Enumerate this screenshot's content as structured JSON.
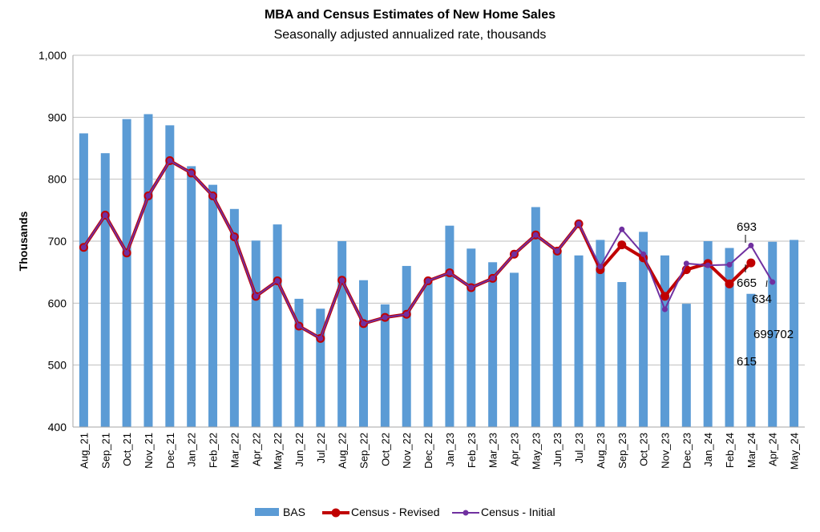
{
  "chart_data": {
    "type": "bar",
    "title": "MBA and Census Estimates of New Home Sales",
    "subtitle": "Seasonally adjusted annualized rate, thousands",
    "xlabel": "",
    "ylabel": "Thousands",
    "ylim": [
      400,
      1000
    ],
    "yticks": [
      400,
      500,
      600,
      700,
      800,
      900,
      1000
    ],
    "ytick_labels": [
      "400",
      "500",
      "600",
      "700",
      "800",
      "900",
      "1,000"
    ],
    "grid": true,
    "legend_position": "bottom",
    "categories": [
      "Aug_21",
      "Sep_21",
      "Oct_21",
      "Nov_21",
      "Dec_21",
      "Jan_22",
      "Feb_22",
      "Mar_22",
      "Apr_22",
      "May_22",
      "Jun_22",
      "Jul_22",
      "Aug_22",
      "Sep_22",
      "Oct_22",
      "Nov_22",
      "Dec_22",
      "Jan_23",
      "Feb_23",
      "Mar_23",
      "Apr_23",
      "May_23",
      "Jun_23",
      "Jul_23",
      "Aug_23",
      "Sep_23",
      "Oct_23",
      "Nov_23",
      "Dec_23",
      "Jan_24",
      "Feb_24",
      "Mar_24",
      "Apr_24",
      "May_24"
    ],
    "series": [
      {
        "name": "BAS",
        "type": "bar",
        "color": "#5b9bd5",
        "values": [
          874,
          842,
          897,
          905,
          887,
          821,
          791,
          752,
          701,
          727,
          607,
          591,
          700,
          637,
          598,
          660,
          634,
          725,
          688,
          666,
          649,
          755,
          684,
          677,
          702,
          634,
          715,
          677,
          599,
          700,
          689,
          615,
          699,
          702
        ]
      },
      {
        "name": "Census - Revised",
        "type": "line",
        "color": "#c00000",
        "values": [
          690,
          742,
          681,
          773,
          830,
          810,
          773,
          707,
          611,
          636,
          563,
          543,
          637,
          567,
          577,
          582,
          636,
          649,
          625,
          640,
          679,
          710,
          684,
          728,
          654,
          694,
          673,
          611,
          654,
          664,
          631,
          665,
          null,
          null
        ]
      },
      {
        "name": "Census - Initial",
        "type": "line",
        "color": "#7030a0",
        "values": [
          690,
          742,
          681,
          773,
          830,
          810,
          773,
          707,
          611,
          636,
          563,
          543,
          637,
          567,
          577,
          582,
          636,
          649,
          625,
          640,
          679,
          710,
          684,
          728,
          659,
          719,
          679,
          590,
          664,
          661,
          662,
          693,
          634,
          null
        ]
      }
    ],
    "data_labels": [
      {
        "text": "693",
        "series": "Census - Initial",
        "category": "Mar_24",
        "value": 693
      },
      {
        "text": "665",
        "series": "Census - Revised",
        "category": "Mar_24",
        "value": 665
      },
      {
        "text": "634",
        "series": "Census - Initial",
        "category": "Apr_24",
        "value": 634
      },
      {
        "text": "615",
        "series": "BAS",
        "category": "Mar_24",
        "value": 615
      },
      {
        "text": "699702",
        "series": "BAS",
        "category": "Apr_24-May_24",
        "value": "699 / 702"
      }
    ]
  }
}
